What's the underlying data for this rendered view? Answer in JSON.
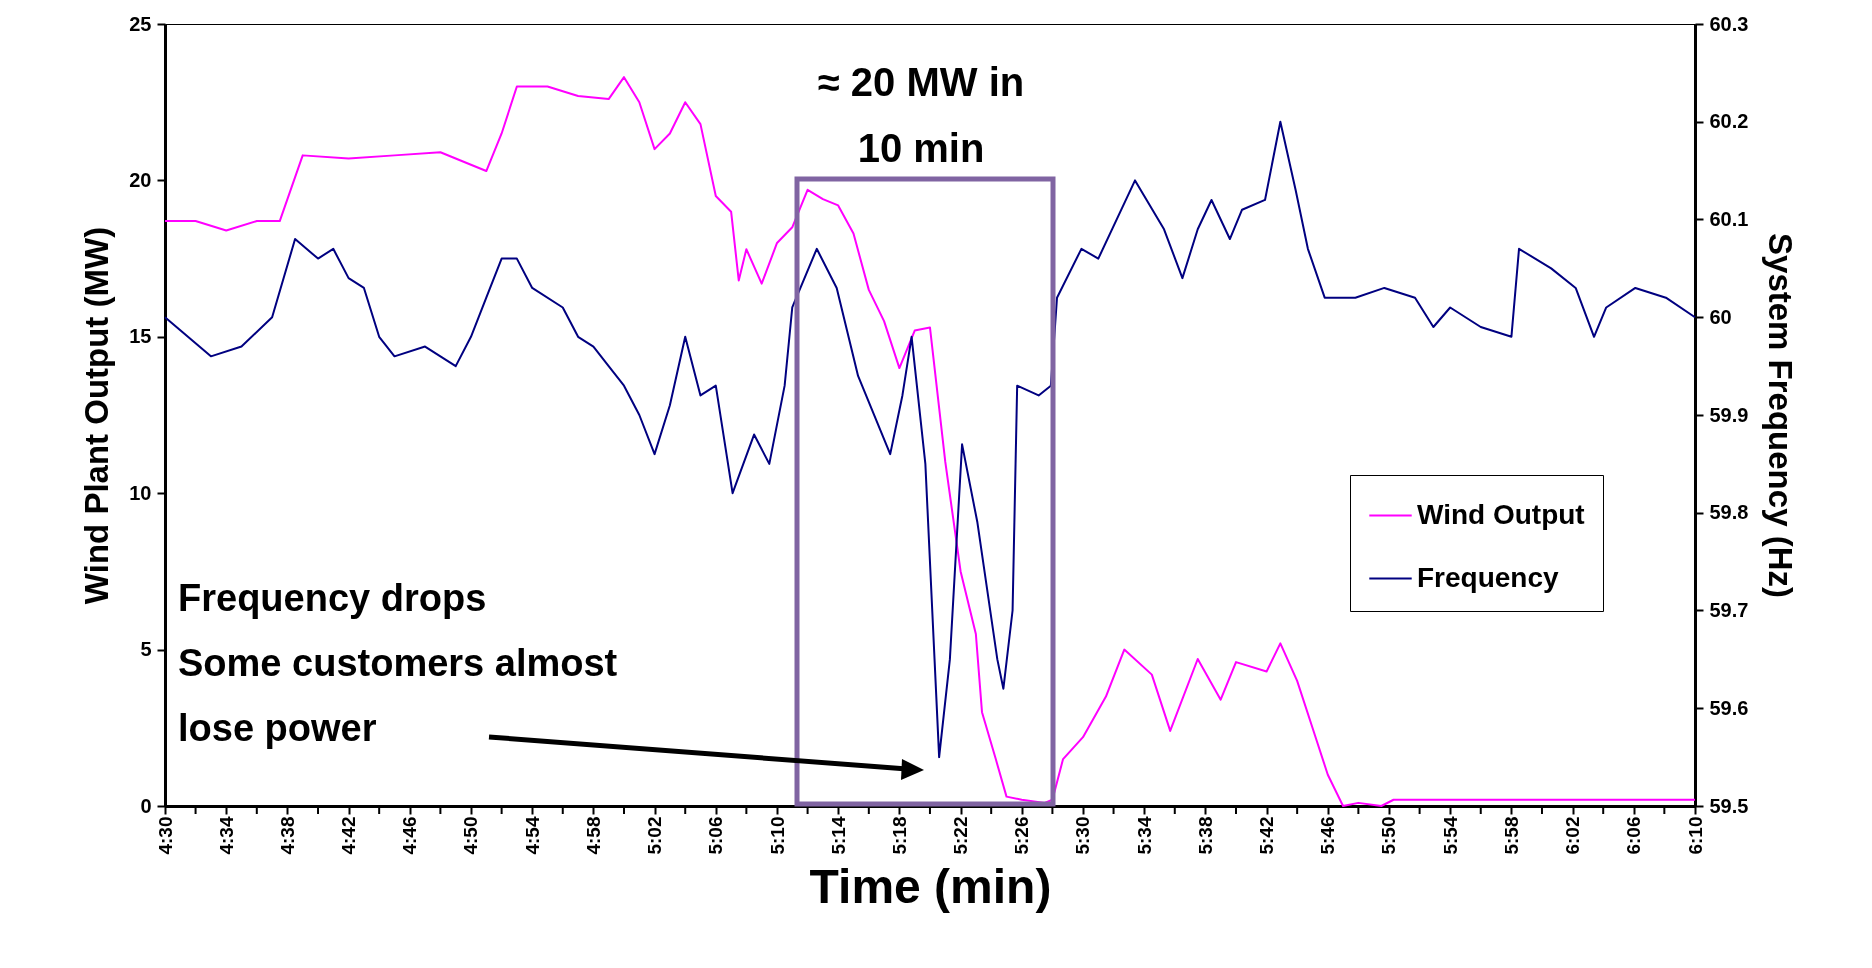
{
  "chart_data": {
    "type": "line",
    "xlabel": "Time (min)",
    "ylabel": "Wind Plant Output (MW)",
    "y2label": "System Frequency (Hz)",
    "xlim": [
      4.5,
      6.1667
    ],
    "xticks": [
      {
        "value": 4.5,
        "label": "4:30"
      },
      {
        "value": 4.5333,
        "label": null
      },
      {
        "value": 4.5667,
        "label": "4:34"
      },
      {
        "value": 4.6,
        "label": null
      },
      {
        "value": 4.6333,
        "label": "4:38"
      },
      {
        "value": 4.6667,
        "label": null
      },
      {
        "value": 4.7,
        "label": "4:42"
      },
      {
        "value": 4.7333,
        "label": null
      },
      {
        "value": 4.7667,
        "label": "4:46"
      },
      {
        "value": 4.8,
        "label": null
      },
      {
        "value": 4.8333,
        "label": "4:50"
      },
      {
        "value": 4.8667,
        "label": null
      },
      {
        "value": 4.9,
        "label": "4:54"
      },
      {
        "value": 4.9333,
        "label": null
      },
      {
        "value": 4.9667,
        "label": "4:58"
      },
      {
        "value": 5,
        "label": null
      },
      {
        "value": 5.0333,
        "label": "5:02"
      },
      {
        "value": 5.0667,
        "label": null
      },
      {
        "value": 5.1,
        "label": "5:06"
      },
      {
        "value": 5.1333,
        "label": null
      },
      {
        "value": 5.1667,
        "label": "5:10"
      },
      {
        "value": 5.2,
        "label": null
      },
      {
        "value": 5.2333,
        "label": "5:14"
      },
      {
        "value": 5.2667,
        "label": null
      },
      {
        "value": 5.3,
        "label": "5:18"
      },
      {
        "value": 5.3333,
        "label": null
      },
      {
        "value": 5.3667,
        "label": "5:22"
      },
      {
        "value": 5.4,
        "label": null
      },
      {
        "value": 5.4333,
        "label": "5:26"
      },
      {
        "value": 5.4667,
        "label": null
      },
      {
        "value": 5.5,
        "label": "5:30"
      },
      {
        "value": 5.5333,
        "label": null
      },
      {
        "value": 5.5667,
        "label": "5:34"
      },
      {
        "value": 5.6,
        "label": null
      },
      {
        "value": 5.6333,
        "label": "5:38"
      },
      {
        "value": 5.6667,
        "label": null
      },
      {
        "value": 5.7,
        "label": "5:42"
      },
      {
        "value": 5.7333,
        "label": null
      },
      {
        "value": 5.7667,
        "label": "5:46"
      },
      {
        "value": 5.8,
        "label": null
      },
      {
        "value": 5.8333,
        "label": "5:50"
      },
      {
        "value": 5.8667,
        "label": null
      },
      {
        "value": 5.9,
        "label": "5:54"
      },
      {
        "value": 5.9333,
        "label": null
      },
      {
        "value": 5.9667,
        "label": "5:58"
      },
      {
        "value": 6,
        "label": null
      },
      {
        "value": 6.0333,
        "label": "6:02"
      },
      {
        "value": 6.0667,
        "label": null
      },
      {
        "value": 6.1,
        "label": "6:06"
      },
      {
        "value": 6.1333,
        "label": null
      },
      {
        "value": 6.1667,
        "label": "6:10"
      }
    ],
    "ylim": [
      0,
      25
    ],
    "yticks": [
      0,
      5,
      10,
      15,
      20,
      25
    ],
    "y2lim": [
      59.5,
      60.3
    ],
    "y2ticks": [
      59.5,
      59.6,
      59.7,
      59.8,
      59.9,
      60,
      60.1,
      60.2,
      60.3
    ],
    "series": [
      {
        "name": "Wind Output",
        "color": "#ff00ff",
        "x": [
          4.5,
          4.5333,
          4.5667,
          4.6,
          4.625,
          4.65,
          4.7,
          4.75,
          4.8,
          4.8333,
          4.85,
          4.8667,
          4.8833,
          4.9167,
          4.95,
          4.9833,
          5,
          5.0167,
          5.0333,
          5.05,
          5.0667,
          5.0833,
          5.1,
          5.1167,
          5.125,
          5.1333,
          5.15,
          5.1667,
          5.1833,
          5.2,
          5.2167,
          5.2333,
          5.25,
          5.2667,
          5.2833,
          5.3,
          5.3167,
          5.3333,
          5.35,
          5.3667,
          5.3833,
          5.39,
          5.405,
          5.4167,
          5.4333,
          5.4583,
          5.4667,
          5.4783,
          5.5,
          5.525,
          5.545,
          5.575,
          5.595,
          5.625,
          5.65,
          5.6667,
          5.7,
          5.715,
          5.7333,
          5.75,
          5.7667,
          5.7833,
          5.8,
          5.825,
          5.8383,
          6.1667
        ],
        "values": [
          18.7,
          18.7,
          18.4,
          18.7,
          18.7,
          20.8,
          20.7,
          20.8,
          20.9,
          20.5,
          20.3,
          21.5,
          23.0,
          23.0,
          22.7,
          22.6,
          23.3,
          22.5,
          21.0,
          21.5,
          22.5,
          21.8,
          19.5,
          19.0,
          16.8,
          17.8,
          16.7,
          18.0,
          18.5,
          19.7,
          19.4,
          19.2,
          18.3,
          16.5,
          15.5,
          14.0,
          15.2,
          15.3,
          11.0,
          7.5,
          5.5,
          3.0,
          1.5,
          0.3,
          0.2,
          0.1,
          0.2,
          1.5,
          2.2,
          3.5,
          5.0,
          4.2,
          2.4,
          4.7,
          3.4,
          4.6,
          4.3,
          5.2,
          4.0,
          2.5,
          1.0,
          0.0,
          0.1,
          0.0,
          0.2,
          0.2
        ]
      },
      {
        "name": "Frequency",
        "color": "#000080",
        "axis": "y2",
        "x": [
          4.5,
          4.55,
          4.5833,
          4.6167,
          4.6417,
          4.6667,
          4.6833,
          4.7,
          4.7167,
          4.7333,
          4.75,
          4.7833,
          4.8167,
          4.8333,
          4.85,
          4.8667,
          4.8833,
          4.9,
          4.9333,
          4.95,
          4.9667,
          4.9833,
          5,
          5.0167,
          5.0333,
          5.05,
          5.0667,
          5.0833,
          5.1,
          5.1183,
          5.1417,
          5.1583,
          5.175,
          5.1833,
          5.21,
          5.2317,
          5.255,
          5.29,
          5.3033,
          5.3133,
          5.3283,
          5.3383,
          5.3433,
          5.355,
          5.3683,
          5.385,
          5.4067,
          5.4133,
          5.4233,
          5.4283,
          5.4517,
          5.465,
          5.4717,
          5.4983,
          5.5167,
          5.5567,
          5.5883,
          5.6083,
          5.625,
          5.64,
          5.66,
          5.6733,
          5.6983,
          5.715,
          5.7317,
          5.745,
          5.7633,
          5.7967,
          5.8283,
          5.8617,
          5.8817,
          5.9,
          5.9333,
          5.9667,
          5.975,
          6.01,
          6.0367,
          6.0567,
          6.07,
          6.1017,
          6.135,
          6.1667
        ],
        "values": [
          60.0,
          59.96,
          59.97,
          60.0,
          60.08,
          60.06,
          60.07,
          60.04,
          60.03,
          59.98,
          59.96,
          59.97,
          59.95,
          59.98,
          60.02,
          60.06,
          60.06,
          60.03,
          60.01,
          59.98,
          59.97,
          59.95,
          59.93,
          59.9,
          59.86,
          59.91,
          59.98,
          59.92,
          59.93,
          59.82,
          59.88,
          59.85,
          59.93,
          60.01,
          60.07,
          60.03,
          59.94,
          59.86,
          59.92,
          59.98,
          59.85,
          59.65,
          59.55,
          59.65,
          59.87,
          59.79,
          59.65,
          59.62,
          59.7,
          59.93,
          59.92,
          59.93,
          60.02,
          60.07,
          60.06,
          60.14,
          60.09,
          60.04,
          60.09,
          60.12,
          60.08,
          60.11,
          60.12,
          60.2,
          60.13,
          60.07,
          60.02,
          60.02,
          60.03,
          60.02,
          59.99,
          60.01,
          59.99,
          59.98,
          60.07,
          60.05,
          60.03,
          59.98,
          60.01,
          60.03,
          60.02,
          60.0
        ]
      }
    ],
    "annotations": [
      "≈ 20 MW in\n10 min",
      "Frequency drops\nSome customers almost\nlose power"
    ],
    "legend": "right",
    "grid": false,
    "line_style": "solid",
    "marker": "none"
  }
}
